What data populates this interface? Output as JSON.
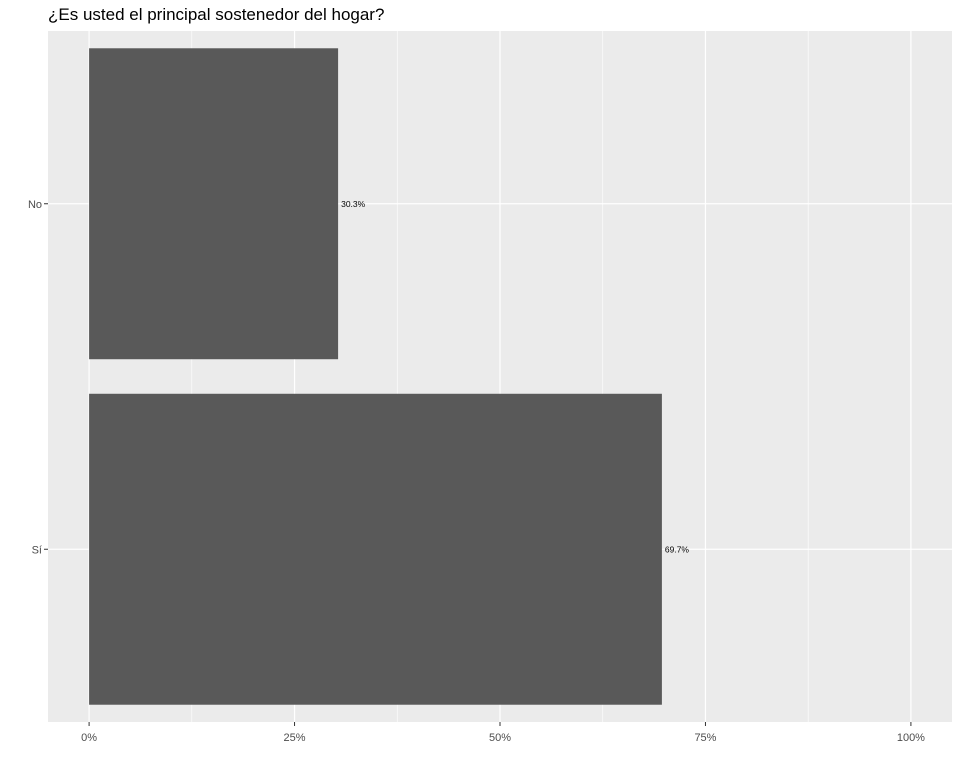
{
  "chart_data": {
    "type": "bar",
    "orientation": "horizontal",
    "title": "¿Es usted el principal sostenedor del hogar?",
    "xlabel": "",
    "ylabel": "",
    "categories": [
      "No",
      "Sí"
    ],
    "values": [
      30.3,
      69.7
    ],
    "value_labels": [
      "30.3%",
      "69.7%"
    ],
    "xlim": [
      -5,
      105
    ],
    "xticks": [
      0,
      25,
      50,
      75,
      100
    ],
    "xtick_labels": [
      "0%",
      "25%",
      "50%",
      "75%",
      "100%"
    ],
    "grid": true,
    "legend": "none",
    "colors": {
      "bar": "#595959",
      "panel": "#ebebeb",
      "grid": "#ffffff",
      "tick_text": "#4d4d4d",
      "label_text": "#000000"
    }
  }
}
